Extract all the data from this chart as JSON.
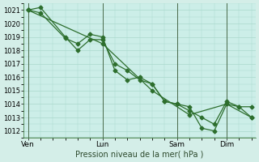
{
  "xlabel": "Pression niveau de la mer( hPa )",
  "bg_color": "#d4eee8",
  "plot_bg_color": "#cceee8",
  "grid_color": "#aad8cc",
  "line_color": "#2d6e2d",
  "vline_color": "#4a6a4a",
  "ylim": [
    1011.5,
    1021.5
  ],
  "yticks": [
    1012,
    1013,
    1014,
    1015,
    1016,
    1017,
    1018,
    1019,
    1020,
    1021
  ],
  "xtick_labels": [
    "Ven",
    "Lun",
    "Sam",
    "Dim"
  ],
  "xtick_positions": [
    0,
    36,
    72,
    96
  ],
  "xlim": [
    -2,
    110
  ],
  "series1_x": [
    0,
    6,
    18,
    24,
    30,
    36,
    42,
    48,
    54,
    60,
    66,
    72,
    78,
    84,
    90,
    96,
    102,
    108
  ],
  "series1_y": [
    1021.0,
    1021.2,
    1019.0,
    1018.0,
    1018.8,
    1018.8,
    1017.0,
    1016.5,
    1015.8,
    1015.5,
    1014.2,
    1014.0,
    1013.8,
    1012.2,
    1012.0,
    1014.0,
    1013.8,
    1013.0
  ],
  "series2_x": [
    0,
    6,
    18,
    24,
    30,
    36,
    42,
    48,
    54,
    60,
    66,
    72,
    78,
    84,
    90,
    96,
    102,
    108
  ],
  "series2_y": [
    1021.0,
    1020.8,
    1018.9,
    1018.5,
    1019.2,
    1019.0,
    1016.5,
    1015.8,
    1016.0,
    1015.5,
    1014.2,
    1014.0,
    1013.5,
    1013.0,
    1012.5,
    1014.2,
    1013.8,
    1013.8
  ],
  "series3_x": [
    0,
    36,
    60,
    78,
    96,
    108
  ],
  "series3_y": [
    1021.0,
    1018.5,
    1015.0,
    1013.2,
    1014.0,
    1013.0
  ],
  "vline_positions": [
    0,
    36,
    72,
    96
  ],
  "marker": "D",
  "marker_size": 2.5,
  "line_width": 0.9,
  "ytick_fontsize": 6,
  "xtick_fontsize": 6.5,
  "xlabel_fontsize": 7
}
